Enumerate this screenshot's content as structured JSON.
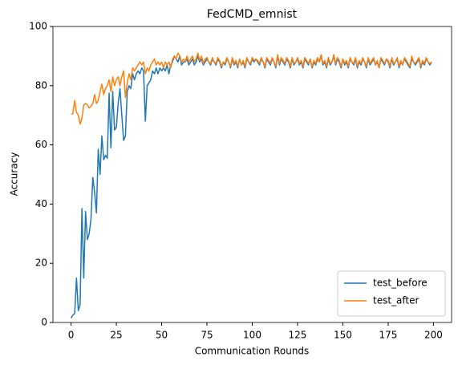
{
  "chart_data": {
    "type": "line",
    "title": "FedCMD_emnist",
    "xlabel": "Communication Rounds",
    "ylabel": "Accuracy",
    "x": [
      0,
      1,
      2,
      3,
      4,
      5,
      6,
      7,
      8,
      9,
      10,
      11,
      12,
      13,
      14,
      15,
      16,
      17,
      18,
      19,
      20,
      21,
      22,
      23,
      24,
      25,
      26,
      27,
      28,
      29,
      30,
      31,
      32,
      33,
      34,
      35,
      36,
      37,
      38,
      39,
      40,
      41,
      42,
      43,
      44,
      45,
      46,
      47,
      48,
      49,
      50,
      51,
      52,
      53,
      54,
      55,
      56,
      57,
      58,
      59,
      60,
      61,
      62,
      63,
      64,
      65,
      66,
      67,
      68,
      69,
      70,
      71,
      72,
      73,
      74,
      75,
      76,
      77,
      78,
      79,
      80,
      81,
      82,
      83,
      84,
      85,
      86,
      87,
      88,
      89,
      90,
      91,
      92,
      93,
      94,
      95,
      96,
      97,
      98,
      99,
      100,
      101,
      102,
      103,
      104,
      105,
      106,
      107,
      108,
      109,
      110,
      111,
      112,
      113,
      114,
      115,
      116,
      117,
      118,
      119,
      120,
      121,
      122,
      123,
      124,
      125,
      126,
      127,
      128,
      129,
      130,
      131,
      132,
      133,
      134,
      135,
      136,
      137,
      138,
      139,
      140,
      141,
      142,
      143,
      144,
      145,
      146,
      147,
      148,
      149,
      150,
      151,
      152,
      153,
      154,
      155,
      156,
      157,
      158,
      159,
      160,
      161,
      162,
      163,
      164,
      165,
      166,
      167,
      168,
      169,
      170,
      171,
      172,
      173,
      174,
      175,
      176,
      177,
      178,
      179,
      180,
      181,
      182,
      183,
      184,
      185,
      186,
      187,
      188,
      189,
      190,
      191,
      192,
      193,
      194,
      195,
      196,
      197,
      198,
      199
    ],
    "series": [
      {
        "name": "test_before",
        "color": "#1f77b4",
        "values": [
          1.5,
          2.5,
          3,
          15,
          4,
          6,
          38.5,
          15,
          37.5,
          28,
          30,
          35,
          49,
          44,
          37,
          58.5,
          50,
          63,
          55,
          56.5,
          55.5,
          77.5,
          59,
          78,
          65,
          66,
          74,
          79,
          70,
          61.5,
          63,
          78,
          80,
          79,
          84,
          82,
          84,
          85,
          84,
          86,
          85,
          68,
          80,
          81,
          82,
          85,
          84,
          86,
          84,
          86,
          85,
          86,
          85,
          87,
          84,
          87,
          88,
          90,
          89,
          88,
          90,
          87,
          88,
          88,
          89,
          87,
          88,
          89,
          87,
          88,
          90,
          88,
          89,
          87,
          88,
          89,
          88,
          87,
          89,
          88,
          87,
          89,
          88,
          86,
          88,
          87,
          89,
          88,
          86,
          89,
          87,
          88,
          86,
          89,
          87,
          88,
          86,
          89,
          88,
          87,
          89,
          88,
          89,
          88,
          87,
          89,
          88,
          86,
          89,
          88,
          87,
          89,
          88,
          86,
          90,
          87,
          89,
          88,
          87,
          89,
          88,
          86,
          89,
          87,
          88,
          89,
          87,
          88,
          86,
          89,
          88,
          87,
          89,
          86,
          88,
          87,
          89,
          88,
          90,
          87,
          88,
          86,
          89,
          87,
          88,
          90,
          87,
          89,
          88,
          86,
          89,
          87,
          88,
          86,
          89,
          88,
          87,
          89,
          86,
          88,
          87,
          89,
          88,
          86,
          89,
          87,
          88,
          89,
          87,
          88,
          86,
          89,
          88,
          87,
          89,
          88,
          86,
          89,
          87,
          88,
          89,
          86,
          88,
          87,
          89,
          88,
          87,
          86,
          89,
          88,
          87,
          88,
          89,
          86,
          88,
          87,
          89,
          88,
          87,
          88
        ]
      },
      {
        "name": "test_after",
        "color": "#ff7f0e",
        "values": [
          70.5,
          70.5,
          75,
          71,
          70,
          67,
          69,
          73.5,
          74,
          73.5,
          72.5,
          73,
          74,
          77,
          74,
          75,
          78,
          80.5,
          77,
          79,
          80,
          82,
          78,
          83,
          80,
          82,
          83,
          80,
          83,
          85,
          76,
          81,
          84,
          82,
          86,
          85,
          86,
          87,
          88,
          87,
          88,
          84,
          86,
          85,
          87,
          88,
          89,
          87,
          88,
          87,
          88,
          86,
          88,
          87,
          88,
          86,
          89,
          90,
          89,
          91,
          90,
          88,
          89,
          88,
          90,
          88,
          89,
          90,
          88,
          89,
          91,
          88.5,
          90,
          87.5,
          89,
          89.5,
          88,
          87.5,
          89.5,
          88,
          87.5,
          89.5,
          88.5,
          86.5,
          88,
          87.5,
          89.5,
          88,
          86.5,
          89.5,
          87.5,
          88.5,
          86.5,
          89,
          87,
          88.5,
          86.5,
          89.5,
          88,
          87.5,
          89.5,
          88.5,
          89,
          88.5,
          87.5,
          89.5,
          88,
          86.5,
          89.5,
          88.5,
          87.5,
          89.5,
          88,
          86.5,
          90.5,
          87.5,
          89.5,
          88.5,
          87.5,
          89.5,
          88.5,
          86.5,
          89.5,
          87.5,
          88,
          89.5,
          87.5,
          88.5,
          86.5,
          89.5,
          88.5,
          87.5,
          89,
          86.5,
          88.5,
          87.5,
          89.5,
          88,
          90.5,
          87.5,
          88.5,
          86.5,
          89.5,
          87.5,
          88,
          90.5,
          87.5,
          89.5,
          88.5,
          86.5,
          89,
          87.5,
          88.5,
          86.5,
          89.5,
          88,
          87.5,
          89.5,
          86.5,
          88.5,
          87.5,
          89.5,
          88,
          86.5,
          89.5,
          87.5,
          88.5,
          89.5,
          87,
          88.5,
          86,
          89.5,
          88.5,
          87.5,
          89,
          88.5,
          86.5,
          89.5,
          87.5,
          88,
          89.5,
          86.5,
          88.5,
          87,
          89.5,
          88.5,
          87.5,
          86.5,
          90,
          88,
          87.5,
          88.5,
          89.5,
          86.5,
          88.5,
          87.5,
          89.5,
          88,
          87.5,
          88
        ]
      }
    ],
    "xlim": [
      -10,
      210
    ],
    "ylim": [
      0,
      100
    ],
    "xticks": [
      0,
      25,
      50,
      75,
      100,
      125,
      150,
      175,
      200
    ],
    "yticks": [
      0,
      20,
      40,
      60,
      80,
      100
    ],
    "grid": false,
    "legend": "lower right"
  }
}
